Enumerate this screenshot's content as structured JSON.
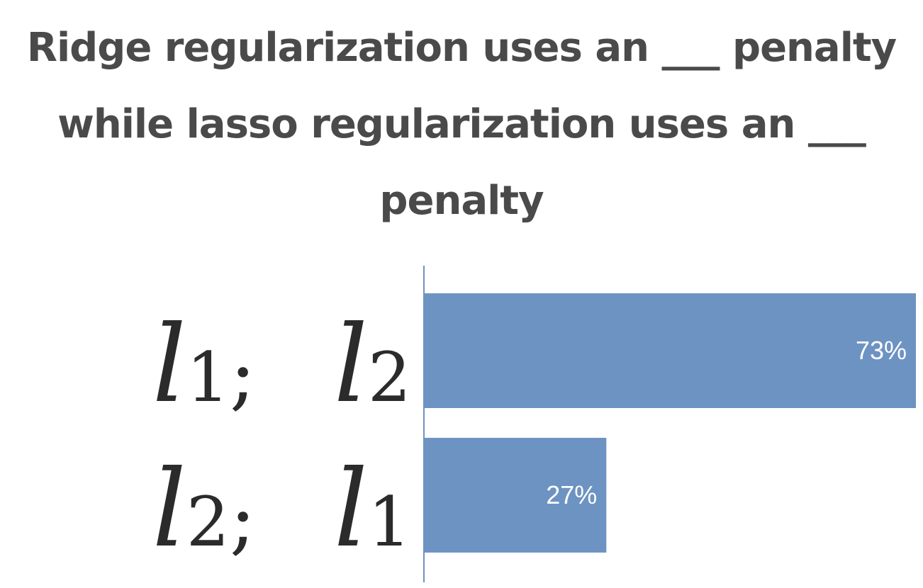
{
  "question": "Ridge regularization uses an ___ penalty while lasso regularization uses an ___ penalty",
  "colors": {
    "bar": "#6d93c2",
    "axis": "#6d93c2",
    "title": "#4a4a4a",
    "label": "#2b2b2b"
  },
  "chart_data": {
    "type": "bar",
    "orientation": "horizontal",
    "categories": [
      {
        "text": "l1; l2",
        "a": "l",
        "a_sub": "1",
        "sep": ";",
        "b": "l",
        "b_sub": "2"
      },
      {
        "text": "l2; l1",
        "a": "l",
        "a_sub": "2",
        "sep": ";",
        "b": "l",
        "b_sub": "1"
      }
    ],
    "values": [
      73,
      27
    ],
    "value_labels": [
      "73%",
      "27%"
    ],
    "xlim": [
      0,
      73
    ],
    "grid": false,
    "legend": "none"
  }
}
